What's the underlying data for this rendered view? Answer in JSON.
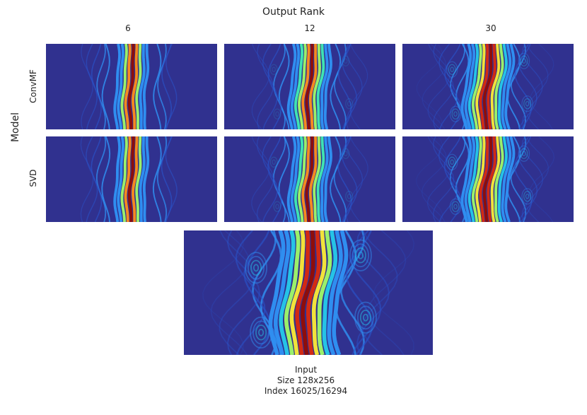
{
  "figure": {
    "title": "Output Rank",
    "columns": [
      "6",
      "12",
      "30"
    ],
    "rows": [
      "ConvMF",
      "SVD"
    ],
    "row_axis_label": "Model",
    "input_caption": [
      "Input",
      "Size 128x256",
      "Index 16025/16294"
    ]
  },
  "colormap": [
    "#30318f",
    "#2a52c8",
    "#2f8ef0",
    "#25c3e6",
    "#3fe3b3",
    "#9af06a",
    "#f2e23a",
    "#f7891f",
    "#d22a13",
    "#8e0d0b"
  ],
  "fields": {
    "panel-convmf-6": {
      "stripes": 9,
      "wobble": 0.35,
      "edge_detail": 0.25,
      "vortex": 0.0
    },
    "panel-convmf-12": {
      "stripes": 11,
      "wobble": 0.55,
      "edge_detail": 0.55,
      "vortex": 0.35
    },
    "panel-convmf-30": {
      "stripes": 13,
      "wobble": 0.7,
      "edge_detail": 0.85,
      "vortex": 0.75
    },
    "panel-svd-6": {
      "stripes": 9,
      "wobble": 0.35,
      "edge_detail": 0.3,
      "vortex": 0.05
    },
    "panel-svd-12": {
      "stripes": 11,
      "wobble": 0.55,
      "edge_detail": 0.6,
      "vortex": 0.4
    },
    "panel-svd-30": {
      "stripes": 13,
      "wobble": 0.7,
      "edge_detail": 0.9,
      "vortex": 0.8
    },
    "panel-input": {
      "stripes": 13,
      "wobble": 0.75,
      "edge_detail": 1.0,
      "vortex": 1.0
    }
  }
}
